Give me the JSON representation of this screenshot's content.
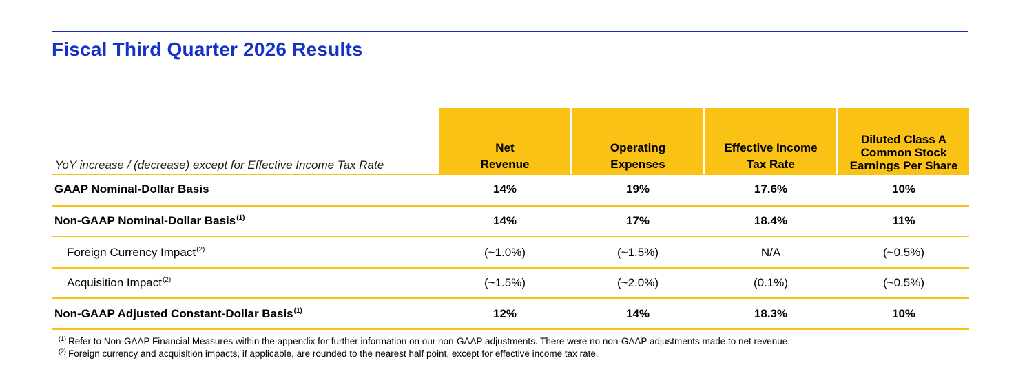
{
  "title": "Fiscal Third Quarter 2026 Results",
  "caption": "YoY increase / (decrease) except for Effective Income Tax Rate",
  "columns": [
    {
      "lines": [
        "Net",
        "Revenue"
      ]
    },
    {
      "lines": [
        "Operating",
        "Expenses"
      ]
    },
    {
      "lines": [
        "Effective Income",
        "Tax Rate"
      ]
    },
    {
      "lines": [
        "Diluted Class A",
        "Common Stock",
        "Earnings Per Share"
      ]
    }
  ],
  "rows": [
    {
      "label": "GAAP Nominal-Dollar Basis",
      "note": "",
      "values": [
        "14%",
        "19%",
        "17.6%",
        "10%"
      ]
    },
    {
      "label": "Non-GAAP Nominal-Dollar Basis",
      "note": "(1)",
      "values": [
        "14%",
        "17%",
        "18.4%",
        "11%"
      ]
    },
    {
      "label": "Foreign Currency Impact",
      "note": "(2)",
      "values": [
        "(~1.0%)",
        "(~1.5%)",
        "N/A",
        "(~0.5%)"
      ]
    },
    {
      "label": "Acquisition Impact",
      "note": "(2)",
      "values": [
        "(~1.5%)",
        "(~2.0%)",
        "(0.1%)",
        "(~0.5%)"
      ]
    },
    {
      "label": "Non-GAAP Adjusted Constant-Dollar Basis",
      "note": "(1)",
      "values": [
        "12%",
        "14%",
        "18.3%",
        "10%"
      ]
    }
  ],
  "footnotes": [
    {
      "mark": "(1)",
      "text": "Refer to Non-GAAP Financial Measures within the appendix for further information on our non-GAAP adjustments. There were no non-GAAP adjustments made to net revenue."
    },
    {
      "mark": "(2)",
      "text": "Foreign currency and acquisition impacts, if applicable, are rounded to the nearest half point, except for effective income tax rate."
    }
  ],
  "colors": {
    "title": "#1432c8",
    "rule": "#1a2bb8",
    "accent": "#fac215"
  }
}
